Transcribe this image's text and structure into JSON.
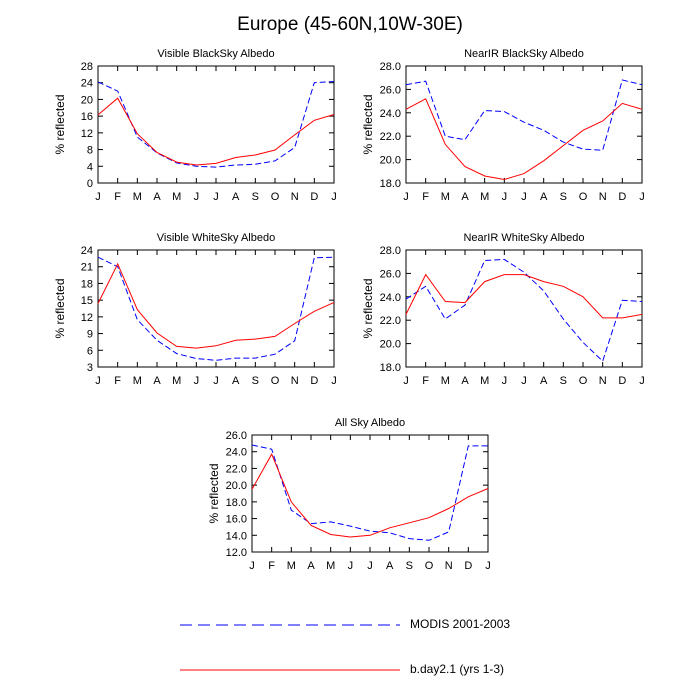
{
  "figure": {
    "title": "Europe (45-60N,10W-30E)"
  },
  "legend": {
    "items": [
      {
        "label": "MODIS 2001-2003",
        "color": "#0000ff",
        "style": "dashed"
      },
      {
        "label": "b.day2.1 (yrs 1-3)",
        "color": "#ff0000",
        "style": "solid"
      }
    ]
  },
  "chart_data": [
    {
      "type": "line",
      "title": "Visible BlackSky Albedo",
      "ylabel": "% reflected",
      "x": [
        "J",
        "F",
        "M",
        "A",
        "M",
        "J",
        "J",
        "A",
        "S",
        "O",
        "N",
        "D",
        "J"
      ],
      "ylim": [
        0,
        28
      ],
      "yticks": [
        "0",
        "4",
        "8",
        "12",
        "16",
        "20",
        "24",
        "28"
      ],
      "series": [
        {
          "name": "MODIS 2001-2003",
          "color": "#0000ff",
          "style": "dashed",
          "values": [
            24.2,
            22.0,
            11.0,
            7.2,
            4.8,
            4.0,
            3.8,
            4.3,
            4.5,
            5.3,
            8.5,
            24.0,
            24.3
          ]
        },
        {
          "name": "b.day2.1 (yrs 1-3)",
          "color": "#ff0000",
          "style": "solid",
          "values": [
            16.3,
            20.3,
            11.8,
            7.3,
            5.0,
            4.3,
            4.7,
            6.1,
            6.7,
            7.9,
            11.5,
            15.0,
            16.4
          ]
        }
      ]
    },
    {
      "type": "line",
      "title": "NearIR BlackSky Albedo",
      "ylabel": "% reflected",
      "x": [
        "J",
        "F",
        "M",
        "A",
        "M",
        "J",
        "J",
        "A",
        "S",
        "O",
        "N",
        "D",
        "J"
      ],
      "ylim": [
        18,
        28
      ],
      "yticks": [
        "18.0",
        "20.0",
        "22.0",
        "24.0",
        "26.0",
        "28.0"
      ],
      "series": [
        {
          "name": "MODIS 2001-2003",
          "color": "#0000ff",
          "style": "dashed",
          "values": [
            26.4,
            26.7,
            22.0,
            21.7,
            24.2,
            24.1,
            23.2,
            22.5,
            21.5,
            20.9,
            20.8,
            26.8,
            26.4
          ]
        },
        {
          "name": "b.day2.1 (yrs 1-3)",
          "color": "#ff0000",
          "style": "solid",
          "values": [
            24.3,
            25.2,
            21.3,
            19.4,
            18.6,
            18.3,
            18.8,
            19.9,
            21.2,
            22.5,
            23.3,
            24.8,
            24.3
          ]
        }
      ]
    },
    {
      "type": "line",
      "title": "Visible WhiteSky Albedo",
      "ylabel": "% reflected",
      "x": [
        "J",
        "F",
        "M",
        "A",
        "M",
        "J",
        "J",
        "A",
        "S",
        "O",
        "N",
        "D",
        "J"
      ],
      "ylim": [
        3,
        24
      ],
      "yticks": [
        "3",
        "6",
        "9",
        "12",
        "15",
        "18",
        "21",
        "24"
      ],
      "series": [
        {
          "name": "MODIS 2001-2003",
          "color": "#0000ff",
          "style": "dashed",
          "values": [
            22.7,
            21.0,
            11.5,
            7.8,
            5.4,
            4.5,
            4.2,
            4.6,
            4.6,
            5.3,
            7.7,
            22.6,
            22.7
          ]
        },
        {
          "name": "b.day2.1 (yrs 1-3)",
          "color": "#ff0000",
          "style": "solid",
          "values": [
            14.4,
            21.5,
            13.3,
            9.1,
            6.7,
            6.4,
            6.8,
            7.8,
            8.0,
            8.5,
            10.8,
            13.0,
            14.6
          ]
        }
      ]
    },
    {
      "type": "line",
      "title": "NearIR WhiteSky Albedo",
      "ylabel": "% reflected",
      "x": [
        "J",
        "F",
        "M",
        "A",
        "M",
        "J",
        "J",
        "A",
        "S",
        "O",
        "N",
        "D",
        "J"
      ],
      "ylim": [
        18,
        28
      ],
      "yticks": [
        "18.0",
        "20.0",
        "22.0",
        "24.0",
        "26.0",
        "28.0"
      ],
      "series": [
        {
          "name": "MODIS 2001-2003",
          "color": "#0000ff",
          "style": "dashed",
          "values": [
            23.8,
            24.9,
            22.1,
            23.3,
            27.1,
            27.2,
            26.1,
            24.5,
            22.1,
            20.1,
            18.5,
            23.7,
            23.6
          ]
        },
        {
          "name": "b.day2.1 (yrs 1-3)",
          "color": "#ff0000",
          "style": "solid",
          "values": [
            22.5,
            25.9,
            23.6,
            23.5,
            25.3,
            25.9,
            25.9,
            25.3,
            24.9,
            24.0,
            22.2,
            22.2,
            22.5
          ]
        }
      ]
    },
    {
      "type": "line",
      "title": "All Sky Albedo",
      "ylabel": "% reflected",
      "x": [
        "J",
        "F",
        "M",
        "A",
        "M",
        "J",
        "J",
        "A",
        "S",
        "O",
        "N",
        "D",
        "J"
      ],
      "ylim": [
        12,
        26
      ],
      "yticks": [
        "12.0",
        "14.0",
        "16.0",
        "18.0",
        "20.0",
        "22.0",
        "24.0",
        "26.0"
      ],
      "series": [
        {
          "name": "MODIS 2001-2003",
          "color": "#0000ff",
          "style": "dashed",
          "values": [
            24.8,
            24.3,
            17.0,
            15.4,
            15.6,
            15.1,
            14.5,
            14.3,
            13.6,
            13.4,
            14.4,
            24.7,
            24.7
          ]
        },
        {
          "name": "b.day2.1 (yrs 1-3)",
          "color": "#ff0000",
          "style": "solid",
          "values": [
            19.5,
            23.7,
            18.0,
            15.2,
            14.1,
            13.8,
            14.0,
            14.9,
            15.5,
            16.1,
            17.2,
            18.6,
            19.6
          ]
        }
      ]
    }
  ]
}
